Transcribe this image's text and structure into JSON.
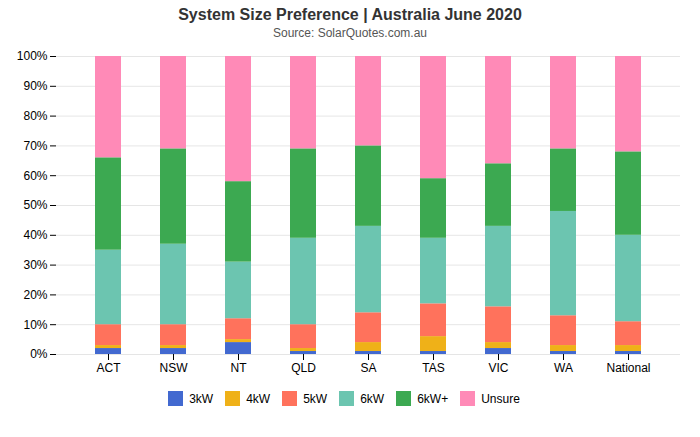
{
  "chart_data": {
    "type": "bar",
    "stacked": true,
    "title": "System Size Preference  |  Australia June 2020",
    "subtitle": "Source: SolarQuotes.com.au",
    "categories": [
      "ACT",
      "NSW",
      "NT",
      "QLD",
      "SA",
      "TAS",
      "VIC",
      "WA",
      "National"
    ],
    "series": [
      {
        "name": "3kW",
        "values": [
          2,
          2,
          4,
          1,
          1,
          1,
          2,
          1,
          1
        ]
      },
      {
        "name": "4kW",
        "values": [
          1,
          1,
          1,
          1,
          3,
          5,
          2,
          2,
          2
        ]
      },
      {
        "name": "5kW",
        "values": [
          7,
          7,
          7,
          8,
          10,
          11,
          12,
          10,
          8
        ]
      },
      {
        "name": "6kW",
        "values": [
          25,
          27,
          19,
          29,
          29,
          22,
          27,
          35,
          29
        ]
      },
      {
        "name": "6kW+",
        "values": [
          31,
          32,
          27,
          30,
          27,
          20,
          21,
          21,
          28
        ]
      },
      {
        "name": "Unsure",
        "values": [
          34,
          31,
          42,
          31,
          30,
          41,
          36,
          31,
          32
        ]
      }
    ],
    "ylim": [
      0,
      100
    ],
    "yticks": [
      {
        "value": 0,
        "label": "0%"
      },
      {
        "value": 10,
        "label": "10%"
      },
      {
        "value": 20,
        "label": "20%"
      },
      {
        "value": 30,
        "label": "30%"
      },
      {
        "value": 40,
        "label": "40%"
      },
      {
        "value": 50,
        "label": "50%"
      },
      {
        "value": 60,
        "label": "60%"
      },
      {
        "value": 70,
        "label": "70%"
      },
      {
        "value": 80,
        "label": "80%"
      },
      {
        "value": 90,
        "label": "90%"
      },
      {
        "value": 100,
        "label": "100%"
      }
    ],
    "grid": true,
    "legend": "bottom"
  }
}
